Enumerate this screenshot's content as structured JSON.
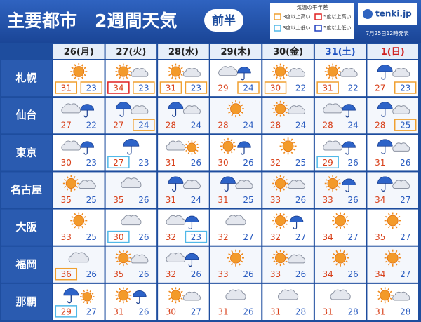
{
  "header": {
    "title": "主要都市　2週間天気",
    "badge": "前半",
    "logo": "tenki.jp",
    "issued": "7月25日12時発表"
  },
  "legend": {
    "title": "気温の平年差",
    "items": [
      {
        "label": "3度以上高い",
        "color": "#f0a030"
      },
      {
        "label": "5度以上高い",
        "color": "#e02020"
      },
      {
        "label": "3度以上低い",
        "color": "#50b8e8"
      },
      {
        "label": "5度以上低い",
        "color": "#2040c0"
      }
    ]
  },
  "table": {
    "columns": [
      "26(月)",
      "27(火)",
      "28(水)",
      "29(木)",
      "30(金)",
      "31(土)",
      "1(日)"
    ],
    "column_colors": [
      "#222222",
      "#222222",
      "#222222",
      "#222222",
      "#222222",
      "#1a4fc0",
      "#d02020"
    ],
    "rows": [
      {
        "city": "札幌",
        "cells": [
          {
            "weather": [
              "sun"
            ],
            "high": 31,
            "low": 23,
            "high_box": 0,
            "low_box": 0
          },
          {
            "weather": [
              "sun",
              "cloud"
            ],
            "high": 34,
            "low": 23,
            "high_box": 1,
            "low_box": 0
          },
          {
            "weather": [
              "sun",
              "cloud"
            ],
            "high": 31,
            "low": 23,
            "high_box": 0,
            "low_box": 0
          },
          {
            "weather": [
              "cloud",
              "rain"
            ],
            "high": 29,
            "low": 24,
            "low_box": 0
          },
          {
            "weather": [
              "sun",
              "cloud"
            ],
            "high": 30,
            "low": 22,
            "high_box": 0
          },
          {
            "weather": [
              "sun",
              "cloud"
            ],
            "high": 31,
            "low": 22,
            "high_box": 0
          },
          {
            "weather": [
              "rain",
              "cloud"
            ],
            "high": 27,
            "low": 23,
            "low_box": 0
          }
        ]
      },
      {
        "city": "仙台",
        "cells": [
          {
            "weather": [
              "cloud",
              "rain"
            ],
            "high": 27,
            "low": 22
          },
          {
            "weather": [
              "rain",
              "cloud"
            ],
            "high": 27,
            "low": 24,
            "low_box": 0
          },
          {
            "weather": [
              "rain",
              "cloud"
            ],
            "high": 28,
            "low": 24
          },
          {
            "weather": [
              "sun"
            ],
            "high": 28,
            "low": 24
          },
          {
            "weather": [
              "sun",
              "cloud"
            ],
            "high": 28,
            "low": 24
          },
          {
            "weather": [
              "cloud",
              "rain"
            ],
            "high": 28,
            "low": 24
          },
          {
            "weather": [
              "rain",
              "cloud"
            ],
            "high": 28,
            "low": 25,
            "low_box": 0
          }
        ]
      },
      {
        "city": "東京",
        "cells": [
          {
            "weather": [
              "cloud",
              "rain"
            ],
            "high": 30,
            "low": 23
          },
          {
            "weather": [
              "rain"
            ],
            "high": 27,
            "low": 23,
            "high_box": 2
          },
          {
            "weather": [
              "cloud",
              "sun"
            ],
            "high": 31,
            "low": 26
          },
          {
            "weather": [
              "sun",
              "rain"
            ],
            "high": 30,
            "low": 26
          },
          {
            "weather": [
              "sun"
            ],
            "high": 32,
            "low": 25
          },
          {
            "weather": [
              "cloud",
              "rain"
            ],
            "high": 29,
            "low": 26,
            "high_box": 2
          },
          {
            "weather": [
              "rain",
              "cloud"
            ],
            "high": 31,
            "low": 26
          }
        ]
      },
      {
        "city": "名古屋",
        "cells": [
          {
            "weather": [
              "sun",
              "cloud"
            ],
            "high": 35,
            "low": 25
          },
          {
            "weather": [
              "cloud"
            ],
            "high": 35,
            "low": 26
          },
          {
            "weather": [
              "rain",
              "cloud"
            ],
            "high": 31,
            "low": 24
          },
          {
            "weather": [
              "rain",
              "cloud"
            ],
            "high": 31,
            "low": 25
          },
          {
            "weather": [
              "sun",
              "cloud"
            ],
            "high": 33,
            "low": 26
          },
          {
            "weather": [
              "sun",
              "rain"
            ],
            "high": 33,
            "low": 26
          },
          {
            "weather": [
              "rain",
              "cloud"
            ],
            "high": 34,
            "low": 27
          }
        ]
      },
      {
        "city": "大阪",
        "cells": [
          {
            "weather": [
              "sun"
            ],
            "high": 33,
            "low": 25
          },
          {
            "weather": [
              "cloud"
            ],
            "high": 30,
            "low": 26,
            "high_box": 2
          },
          {
            "weather": [
              "cloud",
              "rain"
            ],
            "high": 32,
            "low": 23,
            "low_box": 2
          },
          {
            "weather": [
              "cloud"
            ],
            "high": 32,
            "low": 27
          },
          {
            "weather": [
              "sun",
              "rain"
            ],
            "high": 32,
            "low": 27
          },
          {
            "weather": [
              "sun"
            ],
            "high": 34,
            "low": 27
          },
          {
            "weather": [
              "sun"
            ],
            "high": 35,
            "low": 27
          }
        ]
      },
      {
        "city": "福岡",
        "cells": [
          {
            "weather": [
              "cloud"
            ],
            "high": 36,
            "low": 26,
            "high_box": 0
          },
          {
            "weather": [
              "sun",
              "cloud"
            ],
            "high": 35,
            "low": 26
          },
          {
            "weather": [
              "cloud",
              "rain"
            ],
            "high": 32,
            "low": 26
          },
          {
            "weather": [
              "sun"
            ],
            "high": 33,
            "low": 26
          },
          {
            "weather": [
              "sun",
              "cloud"
            ],
            "high": 33,
            "low": 26
          },
          {
            "weather": [
              "sun"
            ],
            "high": 34,
            "low": 26
          },
          {
            "weather": [
              "sun"
            ],
            "high": 34,
            "low": 27
          }
        ]
      },
      {
        "city": "那覇",
        "cells": [
          {
            "weather": [
              "rain",
              "sun"
            ],
            "high": 29,
            "low": 27,
            "high_box": 2
          },
          {
            "weather": [
              "sun",
              "rain"
            ],
            "high": 31,
            "low": 26
          },
          {
            "weather": [
              "sun",
              "cloud"
            ],
            "high": 30,
            "low": 27
          },
          {
            "weather": [
              "cloud"
            ],
            "high": 31,
            "low": 26
          },
          {
            "weather": [
              "cloud"
            ],
            "high": 31,
            "low": 28
          },
          {
            "weather": [
              "cloud"
            ],
            "high": 31,
            "low": 28
          },
          {
            "weather": [
              "sun",
              "cloud"
            ],
            "high": 31,
            "low": 28
          }
        ]
      }
    ]
  }
}
